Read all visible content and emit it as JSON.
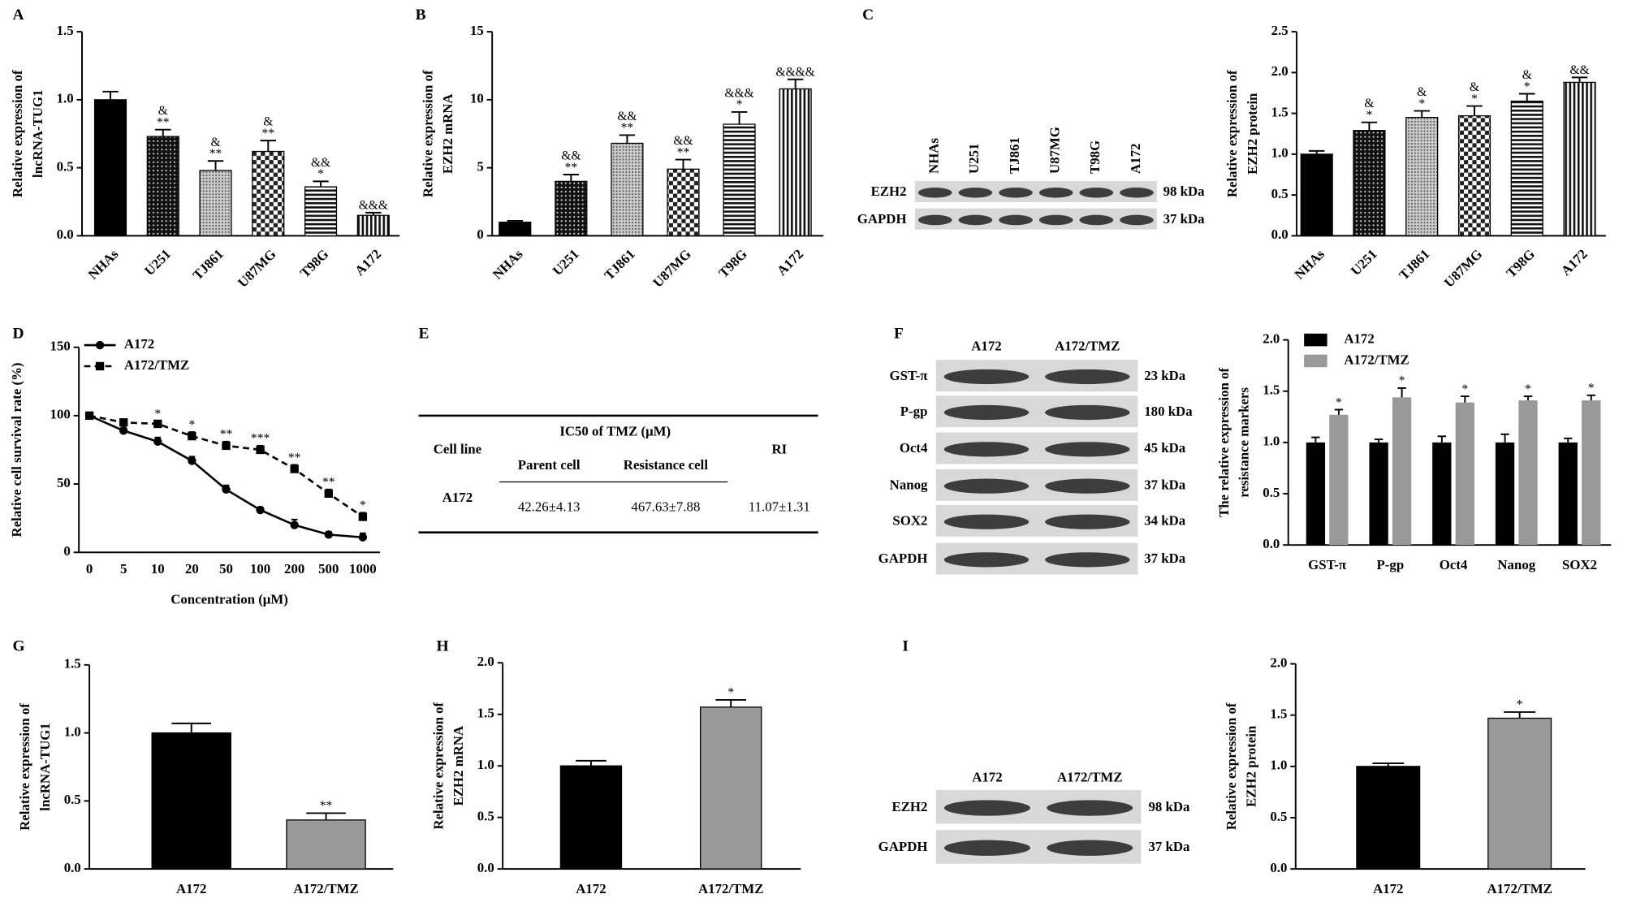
{
  "panel_labels": [
    "A",
    "B",
    "C",
    "D",
    "E",
    "F",
    "G",
    "H",
    "I"
  ],
  "chart_data": [
    {
      "type": "bar",
      "ylabel": [
        "Relative expression of",
        "lncRNA-TUG1"
      ],
      "categories": [
        "NHAs",
        "U251",
        "TJ861",
        "U87MG",
        "T98G",
        "A172"
      ],
      "values": [
        1.0,
        0.73,
        0.48,
        0.62,
        0.36,
        0.15
      ],
      "errors": [
        0.06,
        0.05,
        0.07,
        0.08,
        0.04,
        0.02
      ],
      "annotations": [
        null,
        [
          "&",
          "**"
        ],
        [
          "&",
          "**"
        ],
        [
          "&",
          "**"
        ],
        [
          "&&",
          "*"
        ],
        [
          "&&&"
        ]
      ],
      "fills": [
        "solid",
        "dots",
        "fine",
        "checker",
        "hlines",
        "vlines"
      ],
      "ylim": [
        0,
        1.5
      ],
      "yticks": [
        {
          "value": 0,
          "label": "0.0"
        },
        0.5,
        {
          "value": 1,
          "label": "1.0"
        },
        1.5
      ]
    },
    {
      "type": "bar",
      "ylabel": [
        "Relative expression of",
        "EZH2 mRNA"
      ],
      "categories": [
        "NHAs",
        "U251",
        "TJ861",
        "U87MG",
        "T98G",
        "A172"
      ],
      "values": [
        1.0,
        4.0,
        6.8,
        4.9,
        8.2,
        10.8
      ],
      "errors": [
        0.1,
        0.5,
        0.6,
        0.7,
        0.9,
        0.7
      ],
      "annotations": [
        null,
        [
          "&&",
          "**"
        ],
        [
          "&&",
          "**"
        ],
        [
          "&&",
          "**"
        ],
        [
          "&&&",
          "*"
        ],
        [
          "&&&&"
        ]
      ],
      "fills": [
        "solid",
        "dots",
        "fine",
        "checker",
        "hlines",
        "vlines"
      ],
      "ylim": [
        0,
        15
      ],
      "yticks": [
        0,
        5,
        10,
        15
      ]
    },
    {
      "type": "bar",
      "ylabel": [
        "Relative expression of",
        "EZH2 protein"
      ],
      "categories": [
        "NHAs",
        "U251",
        "TJ861",
        "U87MG",
        "T98G",
        "A172"
      ],
      "values": [
        1.0,
        1.29,
        1.45,
        1.47,
        1.65,
        1.88
      ],
      "errors": [
        0.04,
        0.1,
        0.08,
        0.12,
        0.09,
        0.06
      ],
      "annotations": [
        null,
        [
          "&",
          "*"
        ],
        [
          "&",
          "*"
        ],
        [
          "&",
          "*"
        ],
        [
          "&",
          "*"
        ],
        [
          "&&"
        ]
      ],
      "fills": [
        "solid",
        "dots",
        "fine",
        "checker",
        "hlines",
        "vlines"
      ],
      "ylim": [
        0,
        2.5
      ],
      "yticks": [
        {
          "value": 0,
          "label": "0.0"
        },
        0.5,
        {
          "value": 1,
          "label": "1.0"
        },
        1.5,
        {
          "value": 2,
          "label": "2.0"
        },
        2.5
      ]
    },
    {
      "type": "line",
      "ylabel": [
        "Relative cell survival rate (%)"
      ],
      "xlabel": "Concentration (μM)",
      "categories": [
        "0",
        "5",
        "10",
        "20",
        "50",
        "100",
        "200",
        "500",
        "1000"
      ],
      "series": [
        {
          "name": "A172",
          "color": "#000000",
          "marker": "circle",
          "dash": false,
          "values": [
            100,
            89,
            81,
            67,
            46,
            31,
            20,
            13,
            11
          ],
          "errors": [
            1,
            2,
            3,
            3,
            3,
            2,
            4,
            2,
            3
          ]
        },
        {
          "name": "A172/TMZ",
          "color": "#000000",
          "marker": "square",
          "dash": true,
          "values": [
            100,
            95,
            94,
            85,
            78,
            75,
            61,
            43,
            26
          ],
          "errors": [
            1,
            2,
            2,
            3,
            3,
            3,
            3,
            3,
            3
          ],
          "annotations": [
            null,
            null,
            "*",
            "*",
            "**",
            "***",
            "**",
            "**",
            "*"
          ]
        }
      ],
      "ylim": [
        0,
        150
      ],
      "yticks": [
        0,
        50,
        100,
        150
      ],
      "legend": "top-left"
    },
    {
      "type": "grouped_bar",
      "ylabel": [
        "The relative expression of",
        "resistance markers"
      ],
      "categories": [
        "GST-π",
        "P-gp",
        "Oct4",
        "Nanog",
        "SOX2"
      ],
      "series": [
        {
          "name": "A172",
          "color": "#000000",
          "values": [
            1,
            1,
            1,
            1,
            1
          ],
          "errors": [
            0.05,
            0.03,
            0.06,
            0.08,
            0.04
          ]
        },
        {
          "name": "A172/TMZ",
          "color": "#999999",
          "values": [
            1.27,
            1.44,
            1.39,
            1.41,
            1.41
          ],
          "errors": [
            0.05,
            0.09,
            0.06,
            0.04,
            0.05
          ],
          "annotations": [
            "*",
            "*",
            "*",
            "*",
            "*"
          ]
        }
      ],
      "ylim": [
        0,
        2
      ],
      "yticks": [
        {
          "value": 0,
          "label": "0.0"
        },
        0.5,
        {
          "value": 1,
          "label": "1.0"
        },
        1.5,
        {
          "value": 2,
          "label": "2.0"
        }
      ],
      "legend": "top-left"
    },
    {
      "type": "bar",
      "ylabel": [
        "Relative expression of",
        "lncRNA-TUG1"
      ],
      "categories": [
        "A172",
        "A172/TMZ"
      ],
      "values": [
        1.0,
        0.36
      ],
      "errors": [
        0.07,
        0.05
      ],
      "annotations": [
        null,
        [
          "**"
        ]
      ],
      "colors": [
        "#000000",
        "#999999"
      ],
      "ylim": [
        0,
        1.5
      ],
      "yticks": [
        {
          "value": 0,
          "label": "0.0"
        },
        0.5,
        {
          "value": 1,
          "label": "1.0"
        },
        1.5
      ]
    },
    {
      "type": "bar",
      "ylabel": [
        "Relative expression of",
        "EZH2 mRNA"
      ],
      "categories": [
        "A172",
        "A172/TMZ"
      ],
      "values": [
        1.0,
        1.57
      ],
      "errors": [
        0.05,
        0.07
      ],
      "annotations": [
        null,
        [
          "*"
        ]
      ],
      "colors": [
        "#000000",
        "#999999"
      ],
      "ylim": [
        0,
        2
      ],
      "yticks": [
        {
          "value": 0,
          "label": "0.0"
        },
        0.5,
        {
          "value": 1,
          "label": "1.0"
        },
        1.5,
        {
          "value": 2,
          "label": "2.0"
        }
      ]
    },
    {
      "type": "bar",
      "ylabel": [
        "Relative expression of",
        "EZH2 protein"
      ],
      "categories": [
        "A172",
        "A172/TMZ"
      ],
      "values": [
        1.0,
        1.47
      ],
      "errors": [
        0.03,
        0.06
      ],
      "annotations": [
        null,
        [
          "*"
        ]
      ],
      "colors": [
        "#000000",
        "#999999"
      ],
      "ylim": [
        0,
        2
      ],
      "yticks": [
        {
          "value": 0,
          "label": "0.0"
        },
        0.5,
        {
          "value": 1,
          "label": "1.0"
        },
        1.5,
        {
          "value": 2,
          "label": "2.0"
        }
      ]
    }
  ],
  "blots": [
    {
      "columns": [
        "NHAs",
        "U251",
        "TJ861",
        "U87MG",
        "T98G",
        "A172"
      ],
      "rows": [
        {
          "name": "EZH2",
          "size": "98 kDa"
        },
        {
          "name": "GAPDH",
          "size": "37 kDa"
        }
      ]
    },
    {
      "columns": [
        "A172",
        "A172/TMZ"
      ],
      "rows": [
        {
          "name": "GST-π",
          "size": "23 kDa"
        },
        {
          "name": "P-gp",
          "size": "180 kDa"
        },
        {
          "name": "Oct4",
          "size": "45 kDa"
        },
        {
          "name": "Nanog",
          "size": "37 kDa"
        },
        {
          "name": "SOX2",
          "size": "34 kDa"
        },
        {
          "name": "GAPDH",
          "size": "37 kDa"
        }
      ]
    },
    {
      "columns": [
        "A172",
        "A172/TMZ"
      ],
      "rows": [
        {
          "name": "EZH2",
          "size": "98 kDa"
        },
        {
          "name": "GAPDH",
          "size": "37 kDa"
        }
      ]
    }
  ],
  "table": {
    "header": [
      "Cell line",
      "IC50 of TMZ (μM)",
      "RI"
    ],
    "subheader": [
      "Parent cell",
      "Resistance cell"
    ],
    "rows": [
      [
        "A172",
        "42.26±4.13",
        "467.63±7.88",
        "11.07±1.31"
      ]
    ]
  }
}
